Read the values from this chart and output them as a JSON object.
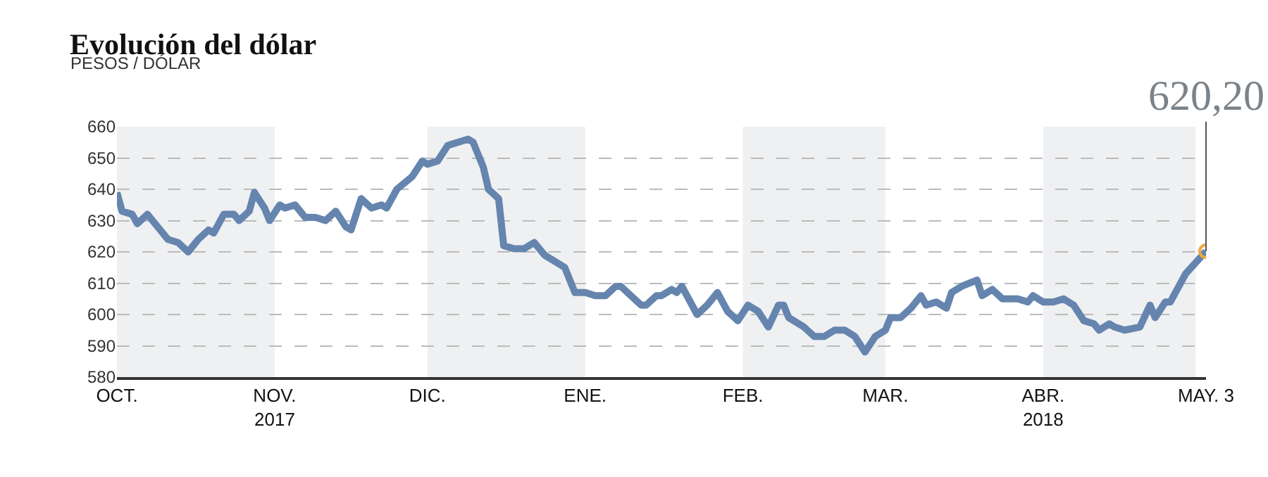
{
  "chart_data": {
    "type": "line",
    "title": "Evolución del dólar",
    "subtitle": "PESOS / DÓLAR",
    "x": [
      "2017-10-01",
      "2017-10-02",
      "2017-10-04",
      "2017-10-05",
      "2017-10-07",
      "2017-10-09",
      "2017-10-11",
      "2017-10-13",
      "2017-10-15",
      "2017-10-17",
      "2017-10-19",
      "2017-10-20",
      "2017-10-22",
      "2017-10-24",
      "2017-10-25",
      "2017-10-27",
      "2017-10-28",
      "2017-10-30",
      "2017-10-31",
      "2017-11-02",
      "2017-11-03",
      "2017-11-05",
      "2017-11-07",
      "2017-11-09",
      "2017-11-11",
      "2017-11-13",
      "2017-11-15",
      "2017-11-16",
      "2017-11-18",
      "2017-11-20",
      "2017-11-22",
      "2017-11-23",
      "2017-11-25",
      "2017-11-28",
      "2017-11-30",
      "2017-12-01",
      "2017-12-03",
      "2017-12-05",
      "2017-12-07",
      "2017-12-09",
      "2017-12-10",
      "2017-12-12",
      "2017-12-13",
      "2017-12-15",
      "2017-12-16",
      "2017-12-18",
      "2017-12-20",
      "2017-12-22",
      "2017-12-24",
      "2017-12-27",
      "2017-12-28",
      "2017-12-30",
      "2018-01-01",
      "2018-01-03",
      "2018-01-05",
      "2018-01-07",
      "2018-01-08",
      "2018-01-10",
      "2018-01-12",
      "2018-01-13",
      "2018-01-15",
      "2018-01-16",
      "2018-01-18",
      "2018-01-19",
      "2018-01-20",
      "2018-01-23",
      "2018-01-25",
      "2018-01-27",
      "2018-01-29",
      "2018-01-31",
      "2018-02-02",
      "2018-02-04",
      "2018-02-06",
      "2018-02-08",
      "2018-02-09",
      "2018-02-10",
      "2018-02-13",
      "2018-02-15",
      "2018-02-17",
      "2018-02-19",
      "2018-02-21",
      "2018-02-23",
      "2018-02-25",
      "2018-02-27",
      "2018-03-01",
      "2018-03-02",
      "2018-03-04",
      "2018-03-06",
      "2018-03-08",
      "2018-03-09",
      "2018-03-11",
      "2018-03-13",
      "2018-03-14",
      "2018-03-16",
      "2018-03-19",
      "2018-03-20",
      "2018-03-22",
      "2018-03-24",
      "2018-03-27",
      "2018-03-29",
      "2018-03-30",
      "2018-04-01",
      "2018-04-03",
      "2018-04-05",
      "2018-04-07",
      "2018-04-09",
      "2018-04-11",
      "2018-04-12",
      "2018-04-14",
      "2018-04-15",
      "2018-04-17",
      "2018-04-20",
      "2018-04-22",
      "2018-04-23",
      "2018-04-25",
      "2018-04-26",
      "2018-04-29",
      "2018-05-03"
    ],
    "series": [
      {
        "color": "#6585ae",
        "values": [
          639,
          633,
          632,
          629,
          632,
          628,
          624,
          623,
          620,
          624,
          627,
          626,
          632,
          632,
          630,
          633,
          639,
          634,
          630,
          635,
          634,
          635,
          631,
          631,
          630,
          633,
          628,
          627,
          637,
          634,
          635,
          634,
          640,
          644,
          649,
          648,
          649,
          654,
          655,
          656,
          655,
          647,
          640,
          637,
          622,
          621,
          621,
          623,
          619,
          616,
          615,
          607,
          607,
          606,
          606,
          609,
          609,
          606,
          603,
          603,
          606,
          606,
          608,
          607,
          609,
          600,
          603,
          607,
          601,
          598,
          603,
          601,
          596,
          603,
          603,
          599,
          596,
          593,
          593,
          595,
          595,
          593,
          588,
          593,
          595,
          599,
          599,
          602,
          606,
          603,
          604,
          602,
          607,
          609,
          611,
          606,
          608,
          605,
          605,
          604,
          606,
          604,
          604,
          605,
          603,
          598,
          597,
          595,
          597,
          596,
          595,
          596,
          603,
          599,
          604,
          604,
          613,
          620.2
        ]
      }
    ],
    "xlim": [
      "2017-10-01",
      "2018-05-03"
    ],
    "xticks": [
      {
        "value": "2017-10-01",
        "label": "OCT."
      },
      {
        "value": "2017-11-01",
        "label": "NOV.\n2017"
      },
      {
        "value": "2017-12-01",
        "label": "DIC."
      },
      {
        "value": "2018-01-01",
        "label": "ENE."
      },
      {
        "value": "2018-02-01",
        "label": "FEB."
      },
      {
        "value": "2018-03-01",
        "label": "MAR."
      },
      {
        "value": "2018-04-01",
        "label": "ABR.\n2018"
      },
      {
        "value": "2018-05-03",
        "label": "MAY. 3"
      }
    ],
    "ylim": [
      580,
      660
    ],
    "yticks": [
      580,
      590,
      600,
      610,
      620,
      630,
      640,
      650,
      660
    ],
    "grid": "y",
    "marker": "none",
    "line_style": "solid",
    "bands": [
      {
        "axis": "x",
        "from": "2017-10-01",
        "to": "2017-11-01",
        "color": "#eff0f2"
      },
      {
        "axis": "x",
        "from": "2017-12-01",
        "to": "2018-01-01",
        "color": "#eff0f2"
      },
      {
        "axis": "x",
        "from": "2018-02-01",
        "to": "2018-03-01",
        "color": "#eff0f2"
      },
      {
        "axis": "x",
        "from": "2018-04-01",
        "to": "2018-05-01",
        "color": "#eff0f2"
      }
    ],
    "annotations": [
      {
        "text": "620,20",
        "x": "2018-05-03",
        "y": 620.2
      }
    ]
  }
}
